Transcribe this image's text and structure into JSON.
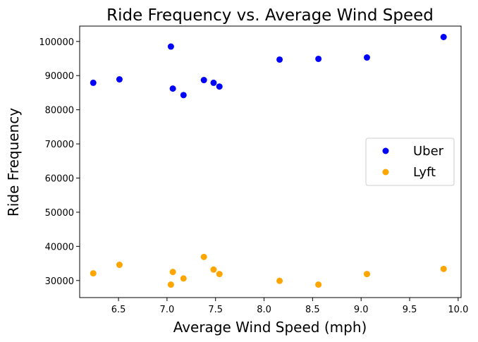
{
  "chart_data": {
    "type": "scatter",
    "title": "Ride Frequency vs. Average Wind Speed",
    "xlabel": "Average Wind Speed (mph)",
    "ylabel": "Ride Frequency",
    "xlim": [
      6.1,
      10.03
    ],
    "ylim": [
      25000,
      104500
    ],
    "xticks": [
      6.5,
      7.0,
      7.5,
      8.0,
      8.5,
      9.0,
      9.5,
      10.0
    ],
    "xtick_labels": [
      "6.5",
      "7.0",
      "7.5",
      "8.0",
      "8.5",
      "9.0",
      "9.5",
      "10.0"
    ],
    "yticks": [
      30000,
      40000,
      50000,
      60000,
      70000,
      80000,
      90000,
      100000
    ],
    "ytick_labels": [
      "30000",
      "40000",
      "50000",
      "60000",
      "70000",
      "80000",
      "90000",
      "100000"
    ],
    "grid": false,
    "legend_position": "center-right",
    "series": [
      {
        "name": "Uber",
        "color": "#0000ff",
        "points": [
          [
            6.24,
            87900
          ],
          [
            6.51,
            88900
          ],
          [
            7.04,
            98500
          ],
          [
            7.06,
            86200
          ],
          [
            7.17,
            84300
          ],
          [
            7.38,
            88700
          ],
          [
            7.48,
            87900
          ],
          [
            7.54,
            86800
          ],
          [
            8.16,
            94700
          ],
          [
            8.56,
            94900
          ],
          [
            9.06,
            95300
          ],
          [
            9.85,
            101300
          ]
        ]
      },
      {
        "name": "Lyft",
        "color": "#ffa500",
        "points": [
          [
            6.24,
            32100
          ],
          [
            6.51,
            34600
          ],
          [
            7.04,
            28800
          ],
          [
            7.06,
            32500
          ],
          [
            7.17,
            30600
          ],
          [
            7.38,
            36900
          ],
          [
            7.48,
            33200
          ],
          [
            7.54,
            31900
          ],
          [
            8.16,
            29900
          ],
          [
            8.56,
            28800
          ],
          [
            9.06,
            31900
          ],
          [
            9.85,
            33400
          ]
        ]
      }
    ]
  }
}
